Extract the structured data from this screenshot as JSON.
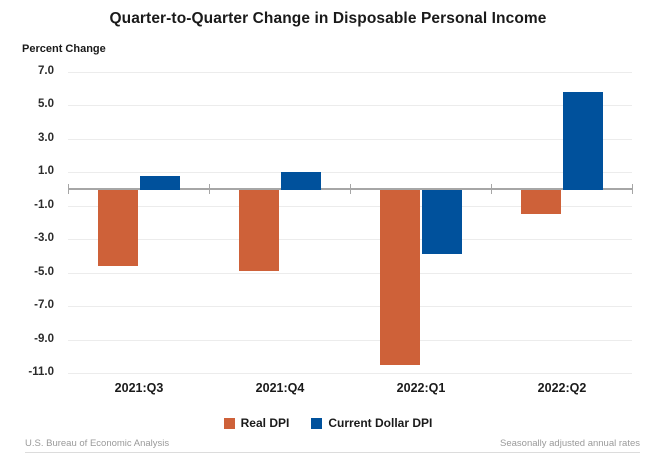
{
  "title": "Quarter-to-Quarter Change in Disposable Personal Income",
  "chart_data": {
    "type": "bar",
    "title": "Quarter-to-Quarter Change in Disposable Personal Income",
    "ylabel": "Percent Change",
    "xlabel": "",
    "categories": [
      "2021:Q3",
      "2021:Q4",
      "2022:Q1",
      "2022:Q2"
    ],
    "series": [
      {
        "name": "Real DPI",
        "color": "#CE6139",
        "values": [
          -4.6,
          -4.9,
          -10.5,
          -1.5
        ]
      },
      {
        "name": "Current Dollar DPI",
        "color": "#00519C",
        "values": [
          0.8,
          1.0,
          -3.9,
          5.8
        ]
      }
    ],
    "yticks": [
      7.0,
      5.0,
      3.0,
      1.0,
      -1.0,
      -3.0,
      -5.0,
      -7.0,
      -9.0,
      -11.0
    ],
    "ylim": [
      -11.0,
      7.0
    ],
    "grid": true,
    "legend_position": "bottom"
  },
  "colors": {
    "real_dpi": "#CE6139",
    "current_dollar_dpi": "#00519C",
    "zero_axis": "#a6a6a6",
    "gridline": "#ececec"
  },
  "footer": {
    "source": "U.S. Bureau of Economic Analysis",
    "note": "Seasonally adjusted annual rates"
  }
}
